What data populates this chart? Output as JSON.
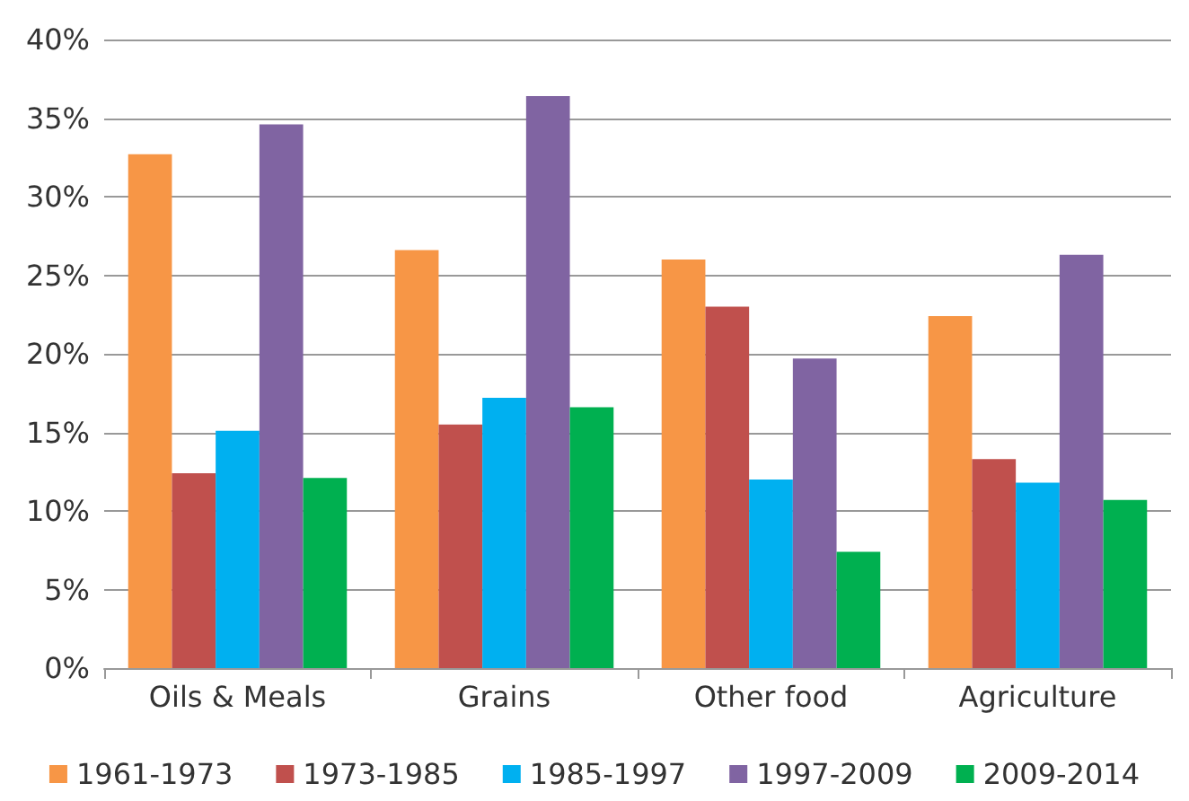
{
  "chart_data": {
    "type": "bar",
    "categories": [
      "Oils & Meals",
      "Grains",
      "Other food",
      "Agriculture"
    ],
    "series": [
      {
        "name": "1961-1973",
        "color": "#f79646",
        "values": [
          32.7,
          26.6,
          26.0,
          22.4
        ]
      },
      {
        "name": "1973-1985",
        "color": "#c0504d",
        "values": [
          12.4,
          15.5,
          23.0,
          13.3
        ]
      },
      {
        "name": "1985-1997",
        "color": "#00b0f0",
        "values": [
          15.1,
          17.2,
          12.0,
          11.8
        ]
      },
      {
        "name": "1997-2009",
        "color": "#8064a2",
        "values": [
          34.6,
          36.4,
          19.7,
          26.3
        ]
      },
      {
        "name": "2009-2014",
        "color": "#00b050",
        "values": [
          12.1,
          16.6,
          7.4,
          10.7
        ]
      }
    ],
    "ylim": [
      0,
      40
    ],
    "yticks": [
      {
        "value": 0,
        "label": "0%"
      },
      {
        "value": 5,
        "label": "5%"
      },
      {
        "value": 10,
        "label": "10%"
      },
      {
        "value": 15,
        "label": "15%"
      },
      {
        "value": 20,
        "label": "20%"
      },
      {
        "value": 25,
        "label": "25%"
      },
      {
        "value": 30,
        "label": "30%"
      },
      {
        "value": 35,
        "label": "35%"
      },
      {
        "value": 40,
        "label": "40%"
      }
    ],
    "grid": "y",
    "legend": "bottom"
  }
}
